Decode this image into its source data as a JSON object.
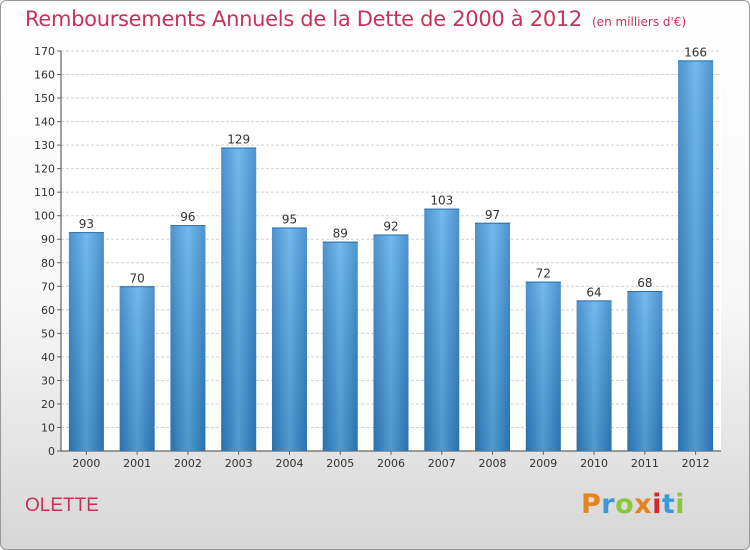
{
  "chart_data": {
    "type": "bar",
    "title": "Remboursements Annuels de la Dette de 2000 à 2012",
    "subtitle": "(en milliers d'€)",
    "categories": [
      "2000",
      "2001",
      "2002",
      "2003",
      "2004",
      "2005",
      "2006",
      "2007",
      "2008",
      "2009",
      "2010",
      "2011",
      "2012"
    ],
    "values": [
      93,
      70,
      96,
      129,
      95,
      89,
      92,
      103,
      97,
      72,
      64,
      68,
      166
    ],
    "ylim": [
      0,
      170
    ],
    "yticks": [
      0,
      10,
      20,
      30,
      40,
      50,
      60,
      70,
      80,
      90,
      100,
      110,
      120,
      130,
      140,
      150,
      160,
      170
    ],
    "grid": true,
    "bar_color": "#3a8fd4",
    "bar_color_light": "#5aaeea"
  },
  "commune": "OLETTE",
  "logo": {
    "letters": [
      "P",
      "r",
      "o",
      "x",
      "i",
      "t",
      "i"
    ],
    "colors": [
      "#e8831a",
      "#3a9ad9",
      "#8cc63f",
      "#e8831a",
      "#d8262e",
      "#3a9ad9",
      "#8cc63f"
    ]
  }
}
